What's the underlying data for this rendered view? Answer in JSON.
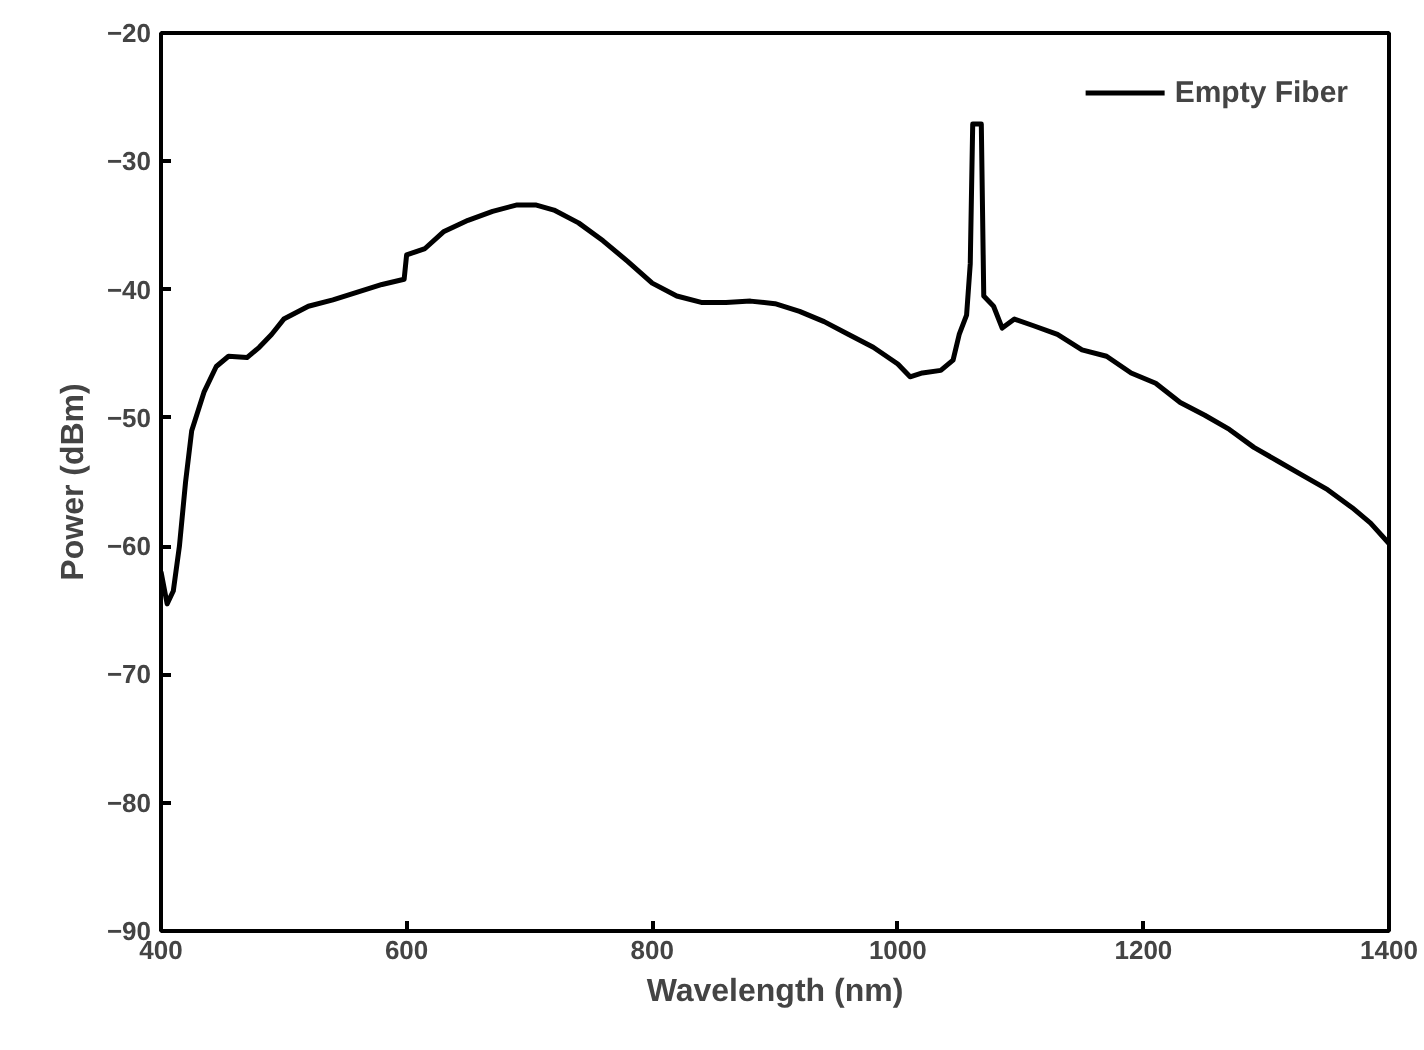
{
  "chart_data": {
    "type": "line",
    "xlabel": "Wavelength (nm)",
    "ylabel": "Power (dBm)",
    "xlim": [
      400,
      1400
    ],
    "xticks": [
      400,
      600,
      800,
      1000,
      1200,
      1400
    ],
    "ylim": [
      -90,
      -20
    ],
    "yticks": [
      -90,
      -80,
      -70,
      -60,
      -50,
      -40,
      -30,
      -20
    ],
    "grid": false,
    "legend": "top right",
    "marker": "none",
    "line_style": "solid",
    "series": [
      {
        "name": "Empty Fiber",
        "color": "#000000",
        "x": [
          400,
          405,
          410,
          415,
          420,
          425,
          435,
          445,
          455,
          470,
          480,
          490,
          500,
          520,
          540,
          560,
          580,
          598,
          600,
          615,
          630,
          650,
          670,
          690,
          705,
          720,
          740,
          760,
          780,
          800,
          820,
          840,
          860,
          880,
          900,
          920,
          940,
          960,
          980,
          1000,
          1010,
          1020,
          1035,
          1045,
          1050,
          1056,
          1059,
          1061,
          1068,
          1070,
          1078,
          1085,
          1095,
          1110,
          1130,
          1150,
          1170,
          1190,
          1210,
          1230,
          1250,
          1270,
          1290,
          1310,
          1330,
          1350,
          1370,
          1385,
          1400
        ],
        "values": [
          -62,
          -64.5,
          -63.5,
          -60,
          -55,
          -51,
          -48,
          -46,
          -45.2,
          -45.3,
          -44.5,
          -43.5,
          -42.3,
          -41.3,
          -40.8,
          -40.2,
          -39.6,
          -39.2,
          -37.3,
          -36.8,
          -35.5,
          -34.6,
          -33.9,
          -33.4,
          -33.4,
          -33.8,
          -34.8,
          -36.2,
          -37.8,
          -39.5,
          -40.5,
          -41,
          -41,
          -40.9,
          -41.1,
          -41.7,
          -42.5,
          -43.5,
          -44.5,
          -45.8,
          -46.8,
          -46.5,
          -46.3,
          -45.5,
          -43.5,
          -42,
          -38,
          -27.1,
          -27.1,
          -40.5,
          -41.3,
          -43,
          -42.3,
          -42.8,
          -43.5,
          -44.7,
          -45.2,
          -46.5,
          -47.3,
          -48.8,
          -49.8,
          -50.9,
          -52.3,
          -53.4,
          -54.5,
          -55.6,
          -57,
          -58.2,
          -59.8
        ]
      }
    ]
  }
}
